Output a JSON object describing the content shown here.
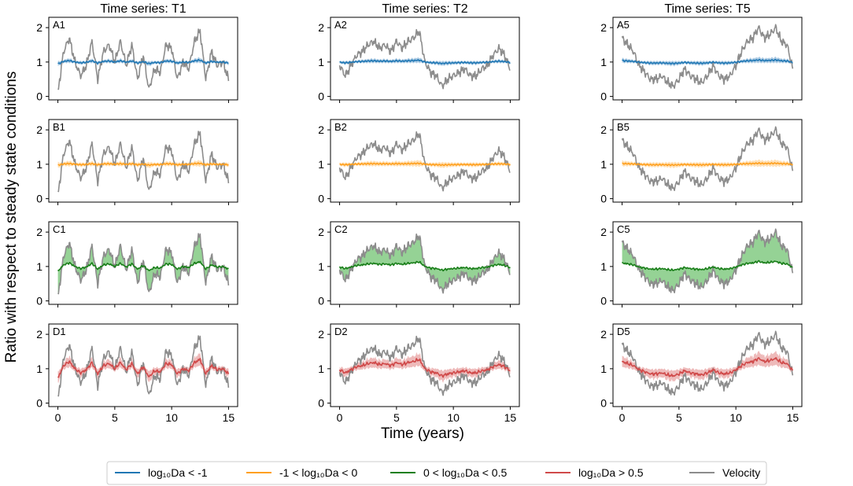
{
  "chart_data": {
    "type": "line",
    "ylabel": "Ratio with respect to steady state conditions",
    "xlabel": "Time (years)",
    "xlim": [
      -0.8,
      15.8
    ],
    "ylim": [
      -0.1,
      2.3
    ],
    "xticks": [
      0,
      5,
      10,
      15
    ],
    "yticks": [
      0,
      1,
      2
    ],
    "columns": [
      {
        "title": "Time series: T1",
        "series_id": "T1"
      },
      {
        "title": "Time series: T2",
        "series_id": "T2"
      },
      {
        "title": "Time series: T5",
        "series_id": "T5"
      }
    ],
    "rows": [
      {
        "row": "A",
        "category": "log10Da < -1",
        "color": "#1f77b4",
        "fill": "#8fb8da",
        "response_gain": 0.06,
        "spread": 0.05
      },
      {
        "row": "B",
        "category": "-1 < log10Da < 0",
        "color": "#ff9f1c",
        "fill": "#ffd49a",
        "response_gain": 0.03,
        "spread": 0.06
      },
      {
        "row": "C",
        "category": "0 < log10Da < 0.5",
        "color": "#1a7f1a",
        "fill": "#7ac77a",
        "response_gain": 0.15,
        "spread": 0.0
      },
      {
        "row": "D",
        "category": "log10Da > 0.5",
        "color": "#d04a4a",
        "fill": "#e8a3a3",
        "response_gain": 0.3,
        "spread": 0.12
      }
    ],
    "panels": [
      [
        "A1",
        "A2",
        "A5"
      ],
      [
        "B1",
        "B2",
        "B5"
      ],
      [
        "C1",
        "C2",
        "C5"
      ],
      [
        "D1",
        "D2",
        "D5"
      ]
    ],
    "velocity_color": "#8c8c8c",
    "velocity_series": {
      "x": [
        0,
        0.5,
        1,
        1.5,
        2,
        2.5,
        3,
        3.5,
        4,
        4.5,
        5,
        5.5,
        6,
        6.5,
        7,
        7.5,
        8,
        8.5,
        9,
        9.5,
        10,
        10.5,
        11,
        11.5,
        12,
        12.5,
        13,
        13.5,
        14,
        14.5,
        15
      ],
      "T1": [
        0.1,
        1.3,
        1.7,
        1.0,
        0.6,
        0.9,
        1.6,
        0.5,
        1.3,
        1.5,
        1.0,
        1.6,
        0.9,
        1.5,
        0.5,
        1.2,
        0.2,
        0.8,
        0.7,
        1.5,
        1.4,
        0.5,
        1.0,
        0.8,
        1.6,
        1.9,
        0.5,
        1.3,
        0.9,
        1.0,
        0.5
      ],
      "T2": [
        0.9,
        0.6,
        0.9,
        1.2,
        1.3,
        1.5,
        1.6,
        1.4,
        1.5,
        1.3,
        1.6,
        1.4,
        1.6,
        1.7,
        1.9,
        1.0,
        0.7,
        0.6,
        0.3,
        0.5,
        0.6,
        0.7,
        0.8,
        0.6,
        0.6,
        0.8,
        0.9,
        1.2,
        1.4,
        1.2,
        0.8
      ],
      "T5": [
        1.7,
        1.5,
        1.3,
        0.9,
        0.7,
        0.5,
        0.5,
        0.6,
        0.4,
        0.3,
        0.5,
        0.8,
        0.6,
        0.5,
        0.4,
        0.6,
        0.9,
        0.6,
        0.5,
        0.6,
        0.9,
        1.3,
        1.6,
        1.7,
        2.0,
        1.7,
        1.8,
        2.0,
        1.6,
        1.5,
        0.8
      ]
    },
    "legend": {
      "placement": "bottom-center",
      "entries": [
        {
          "label": "log₁₀Da < -1",
          "color": "#1f77b4"
        },
        {
          "label": "-1 < log₁₀Da < 0",
          "color": "#ff9f1c"
        },
        {
          "label": "0 < log₁₀Da < 0.5",
          "color": "#1a7f1a"
        },
        {
          "label": "log₁₀Da > 0.5",
          "color": "#d04a4a"
        },
        {
          "label": "Velocity",
          "color": "#8c8c8c"
        }
      ]
    }
  }
}
